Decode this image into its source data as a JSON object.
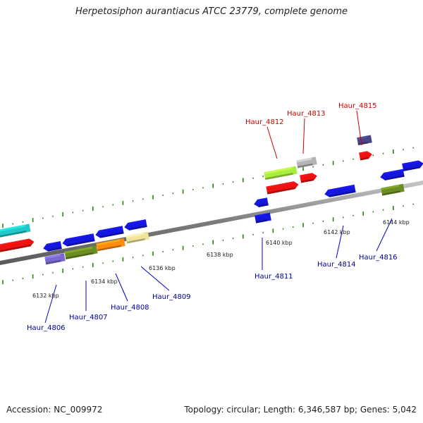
{
  "title": "Herpetosiphon aurantiacus ATCC 23779, complete genome",
  "footer": {
    "accession": "Accession: NC_009972",
    "summary": "Topology: circular; Length: 6,346,587 bp; Genes: 5,042"
  },
  "colors": {
    "backbone": "#8a8a8a",
    "dot": "#2e7d1a",
    "label_red": "#cc0000",
    "label_blue": "#000099",
    "leader": "#0000cc"
  },
  "tick_labels": [
    "6132 kbp",
    "6134 kbp",
    "6136 kbp",
    "6138 kbp",
    "6140 kbp",
    "6142 kbp",
    "6144 kbp"
  ],
  "genes": [
    {
      "name": "Haur_4806",
      "color": "label_blue"
    },
    {
      "name": "Haur_4807",
      "color": "label_blue"
    },
    {
      "name": "Haur_4808",
      "color": "label_blue"
    },
    {
      "name": "Haur_4809",
      "color": "label_blue"
    },
    {
      "name": "Haur_4811",
      "color": "label_blue"
    },
    {
      "name": "Haur_4812",
      "color": "label_red"
    },
    {
      "name": "Haur_4813",
      "color": "label_red"
    },
    {
      "name": "Haur_4814",
      "color": "label_blue"
    },
    {
      "name": "Haur_4815",
      "color": "label_red"
    },
    {
      "name": "Haur_4816",
      "color": "label_blue"
    }
  ]
}
